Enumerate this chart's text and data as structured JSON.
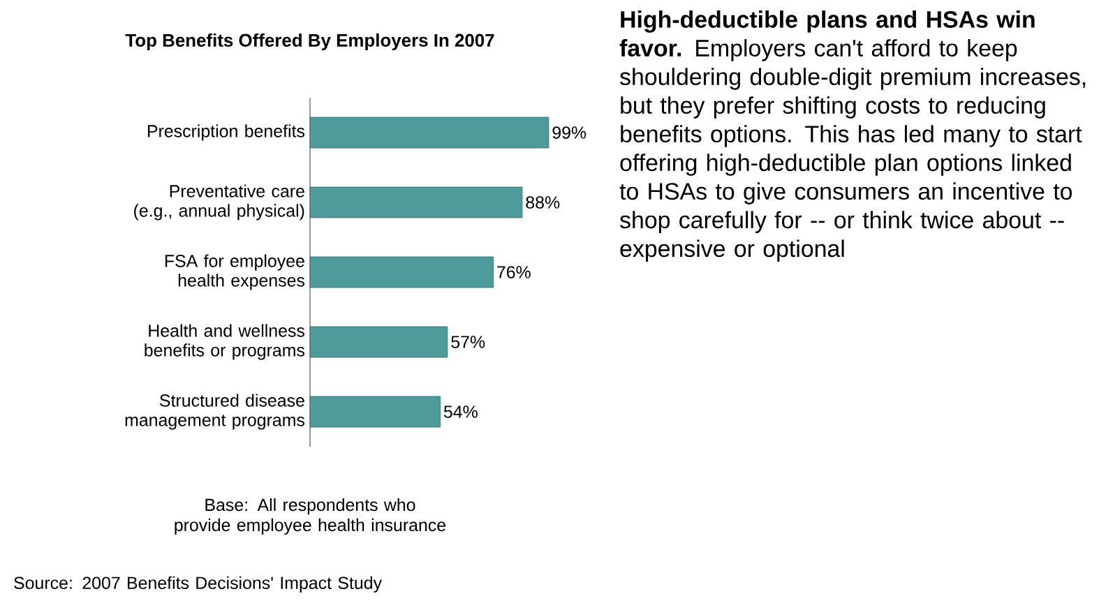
{
  "chart_data": {
    "type": "bar",
    "orientation": "horizontal",
    "title": "Top Benefits Offered By Employers In 2007",
    "categories": [
      "Prescription benefits",
      "Preventative care (e.g., annual physical)",
      "FSA for employee health expenses",
      "Health and wellness benefits or programs",
      "Structured disease management programs"
    ],
    "values": [
      99,
      88,
      76,
      57,
      54
    ],
    "value_labels": [
      "99%",
      "88%",
      "76%",
      "57%",
      "54%"
    ],
    "color": "#4f9a9a",
    "annotations": [
      "Base: All respondents who provide employee health insurance",
      "Source: 2007 Benefits Decisions' Impact Study",
      "**High-deductible plans and HSAs win favor.** Employers can't afford to keep shouldering double-digit premium increases, but they prefer shifting costs to reducing benefits options. This has led many to start offering high-deductible plan options linked to HSAs to give consumers an incentive to shop carefully for -- or think twice about -- expensive or optional"
    ]
  }
}
